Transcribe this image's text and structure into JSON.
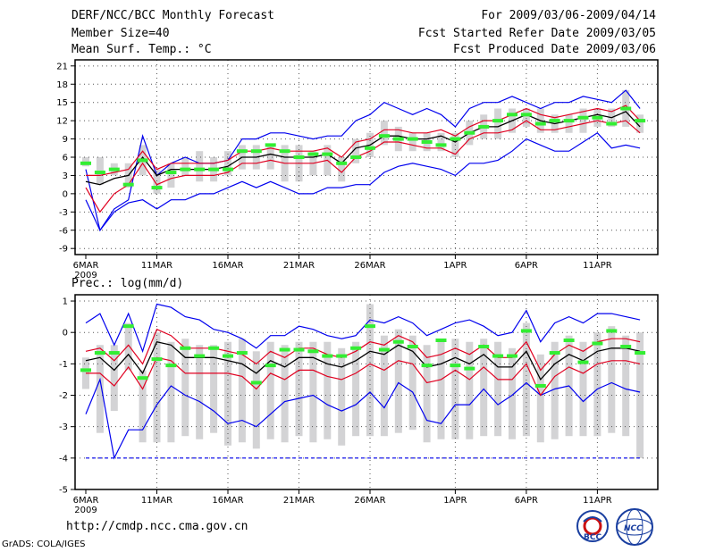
{
  "header": {
    "title": "DERF/NCC/BCC Monthly Forecast",
    "member_size": "Member Size=40",
    "variable": "Mean Surf. Temp.: °C",
    "period": "For 2009/03/06-2009/04/14",
    "started": "Fcst Started Refer Date 2009/03/05",
    "produced": "Fcst Produced Date 2009/03/06"
  },
  "precip_label": "Prec.: log(mm/d)",
  "footer": {
    "url": "http://cmdp.ncc.cma.gov.cn",
    "grads": "GrADS: COLA/IGES"
  },
  "logos": {
    "bcc": "BCC",
    "ncc": "NCC"
  },
  "colors": {
    "box": "#d3d3d5",
    "mean": "#000000",
    "sd": "#e00020",
    "range": "#0000ee",
    "obs": "#33ee33",
    "grid": "#555555"
  },
  "chart_data": [
    {
      "type": "line",
      "title": "Mean Surf. Temp.: °C",
      "x": [
        "6MAR",
        "7MAR",
        "8MAR",
        "9MAR",
        "10MAR",
        "11MAR",
        "12MAR",
        "13MAR",
        "14MAR",
        "15MAR",
        "16MAR",
        "17MAR",
        "18MAR",
        "19MAR",
        "20MAR",
        "21MAR",
        "22MAR",
        "23MAR",
        "24MAR",
        "25MAR",
        "26MAR",
        "27MAR",
        "28MAR",
        "29MAR",
        "30MAR",
        "31MAR",
        "1APR",
        "2APR",
        "3APR",
        "4APR",
        "5APR",
        "6APR",
        "7APR",
        "8APR",
        "9APR",
        "10APR",
        "11APR",
        "12APR",
        "13APR",
        "14APR"
      ],
      "x_ticks": [
        "6MAR",
        "11MAR",
        "16MAR",
        "21MAR",
        "26MAR",
        "1APR",
        "6APR",
        "11APR"
      ],
      "x_tick_index": [
        0,
        5,
        10,
        15,
        20,
        26,
        31,
        36
      ],
      "x_sublabel": "2009",
      "ylim": [
        -10,
        22
      ],
      "yticks": [
        -9,
        -6,
        -3,
        0,
        3,
        6,
        9,
        12,
        15,
        18,
        21
      ],
      "series": [
        {
          "name": "max",
          "values": [
            4,
            -6,
            -2.5,
            -1,
            9.5,
            3,
            5,
            6,
            5,
            5,
            5.5,
            9,
            9,
            10,
            10,
            9.5,
            9,
            9.5,
            9.5,
            12,
            13,
            15,
            14,
            13,
            14,
            13,
            11,
            14,
            15,
            15,
            16,
            15,
            14,
            15,
            15,
            16,
            15.5,
            15,
            17,
            14
          ]
        },
        {
          "name": "mean_plus_sd",
          "values": [
            3,
            3,
            3.5,
            4,
            7,
            4,
            5,
            5,
            5,
            5,
            5.5,
            7,
            7,
            7.5,
            7,
            7,
            7,
            7.5,
            6,
            8.5,
            9,
            10.5,
            10.5,
            10,
            10,
            10.5,
            9.5,
            11,
            12,
            12,
            13,
            14,
            13,
            12.5,
            13,
            13.5,
            14,
            13.5,
            14.5,
            12
          ]
        },
        {
          "name": "mean",
          "values": [
            2,
            1.5,
            2.5,
            3,
            6,
            3,
            4,
            4,
            4,
            4,
            4.5,
            6,
            6,
            6.5,
            6,
            6,
            6,
            6.5,
            5,
            7.5,
            8,
            9.5,
            9.5,
            9,
            9,
            9.5,
            8.5,
            10,
            11,
            11,
            12,
            13,
            12,
            11.5,
            12,
            12.5,
            13,
            12.5,
            13.5,
            11
          ]
        },
        {
          "name": "mean_minus_sd",
          "values": [
            1,
            -3,
            0,
            1.5,
            5,
            1.5,
            2.5,
            3,
            3,
            3,
            3.5,
            5,
            5,
            5.5,
            5,
            5,
            5,
            5.5,
            3.5,
            6,
            7,
            8.5,
            8.5,
            8,
            7.5,
            7.5,
            6.5,
            9,
            10,
            10,
            10.5,
            12,
            10.5,
            10.5,
            11,
            11.5,
            12,
            11.5,
            12,
            10
          ]
        },
        {
          "name": "min",
          "values": [
            -1,
            -6,
            -3,
            -1.5,
            -1,
            -2.5,
            -1,
            -1,
            0,
            0,
            1,
            2,
            1,
            2,
            1,
            0,
            0,
            1,
            1,
            1.5,
            1.5,
            3.5,
            4.5,
            5,
            4.5,
            4,
            3,
            5,
            5,
            5.5,
            7,
            9,
            8,
            7,
            7,
            8.5,
            10,
            7.5,
            8,
            7.5
          ]
        },
        {
          "name": "box_low",
          "values": [
            4.5,
            1.5,
            3,
            1,
            3,
            0,
            1,
            3,
            2,
            2,
            3,
            4,
            4,
            4,
            2,
            2,
            3,
            3,
            2,
            5,
            6,
            8,
            7,
            7,
            7,
            7,
            6,
            8,
            9,
            9,
            10,
            11,
            10,
            10,
            10,
            10,
            11,
            11,
            11,
            10
          ]
        },
        {
          "name": "box_high",
          "values": [
            6,
            6,
            5,
            5,
            8,
            4,
            5,
            6,
            7,
            6,
            7,
            8,
            8,
            8,
            8,
            8,
            7,
            8,
            6,
            9,
            10,
            12,
            11,
            10,
            10,
            10,
            10,
            12,
            13,
            14,
            14,
            14,
            14,
            13,
            13,
            14,
            14,
            14,
            17,
            13
          ]
        },
        {
          "name": "observed",
          "values": [
            5,
            3.5,
            4,
            1.5,
            5.5,
            1,
            3.5,
            4,
            4,
            4,
            4,
            7,
            7,
            8,
            7,
            6,
            6.5,
            6.5,
            5,
            6,
            7.5,
            9.5,
            9,
            9,
            8.5,
            8,
            9,
            10,
            11,
            12,
            13,
            13,
            11.5,
            12,
            12,
            12.5,
            12.5,
            11.5,
            14,
            12
          ]
        }
      ]
    },
    {
      "type": "line",
      "title": "Prec.: log(mm/d)",
      "x": [
        "6MAR",
        "7MAR",
        "8MAR",
        "9MAR",
        "10MAR",
        "11MAR",
        "12MAR",
        "13MAR",
        "14MAR",
        "15MAR",
        "16MAR",
        "17MAR",
        "18MAR",
        "19MAR",
        "20MAR",
        "21MAR",
        "22MAR",
        "23MAR",
        "24MAR",
        "25MAR",
        "26MAR",
        "27MAR",
        "28MAR",
        "29MAR",
        "30MAR",
        "31MAR",
        "1APR",
        "2APR",
        "3APR",
        "4APR",
        "5APR",
        "6APR",
        "7APR",
        "8APR",
        "9APR",
        "10APR",
        "11APR",
        "12APR",
        "13APR",
        "14APR"
      ],
      "x_ticks": [
        "6MAR",
        "11MAR",
        "16MAR",
        "21MAR",
        "26MAR",
        "1APR",
        "6APR",
        "11APR"
      ],
      "x_tick_index": [
        0,
        5,
        10,
        15,
        20,
        26,
        31,
        36
      ],
      "x_sublabel": "2009",
      "ylim": [
        -5,
        1.2
      ],
      "yticks": [
        -5,
        -4,
        -3,
        -2,
        -1,
        0,
        1
      ],
      "series": [
        {
          "name": "max",
          "values": [
            0.3,
            0.6,
            -0.4,
            0.6,
            -0.6,
            0.9,
            0.8,
            0.5,
            0.4,
            0.1,
            0,
            -0.2,
            -0.5,
            -0.1,
            -0.1,
            0.2,
            0.1,
            -0.1,
            -0.2,
            -0.1,
            0.4,
            0.3,
            0.5,
            0.3,
            -0.1,
            0.1,
            0.3,
            0.4,
            0.2,
            -0.1,
            0,
            0.7,
            -0.3,
            0.3,
            0.5,
            0.3,
            0.6,
            0.6,
            0.5,
            0.4
          ]
        },
        {
          "name": "mean_plus_sd",
          "values": [
            -0.6,
            -0.5,
            -0.9,
            -0.4,
            -1,
            0.1,
            -0.1,
            -0.5,
            -0.5,
            -0.5,
            -0.6,
            -0.7,
            -1,
            -0.6,
            -0.8,
            -0.5,
            -0.5,
            -0.7,
            -0.8,
            -0.6,
            -0.3,
            -0.4,
            -0.1,
            -0.3,
            -0.8,
            -0.7,
            -0.5,
            -0.7,
            -0.4,
            -0.8,
            -0.8,
            -0.3,
            -1.2,
            -0.7,
            -0.4,
            -0.6,
            -0.3,
            -0.2,
            -0.2,
            -0.3
          ]
        },
        {
          "name": "mean",
          "values": [
            -0.9,
            -0.8,
            -1.2,
            -0.7,
            -1.3,
            -0.3,
            -0.4,
            -0.8,
            -0.8,
            -0.8,
            -0.9,
            -1,
            -1.3,
            -0.9,
            -1.1,
            -0.8,
            -0.8,
            -1,
            -1.1,
            -0.9,
            -0.6,
            -0.7,
            -0.4,
            -0.6,
            -1.1,
            -1,
            -0.8,
            -1,
            -0.7,
            -1.1,
            -1.1,
            -0.6,
            -1.5,
            -1,
            -0.7,
            -0.9,
            -0.6,
            -0.5,
            -0.5,
            -0.6
          ]
        },
        {
          "name": "mean_minus_sd",
          "values": [
            -1.3,
            -1.3,
            -1.7,
            -1.1,
            -1.8,
            -0.8,
            -0.9,
            -1.3,
            -1.3,
            -1.3,
            -1.3,
            -1.4,
            -1.8,
            -1.3,
            -1.5,
            -1.2,
            -1.2,
            -1.4,
            -1.5,
            -1.3,
            -1,
            -1.2,
            -0.9,
            -1,
            -1.6,
            -1.5,
            -1.2,
            -1.5,
            -1.1,
            -1.5,
            -1.5,
            -1,
            -2,
            -1.4,
            -1.1,
            -1.3,
            -1,
            -0.9,
            -0.9,
            -1
          ]
        },
        {
          "name": "min",
          "values": [
            -2.6,
            -1.5,
            -4,
            -3.1,
            -3.1,
            -2.3,
            -1.7,
            -2,
            -2.2,
            -2.5,
            -2.9,
            -2.8,
            -3,
            -2.6,
            -2.2,
            -2.1,
            -2,
            -2.3,
            -2.5,
            -2.3,
            -1.9,
            -2.4,
            -1.6,
            -1.9,
            -2.8,
            -2.9,
            -2.3,
            -2.3,
            -1.8,
            -2.3,
            -2,
            -1.6,
            -2,
            -1.8,
            -1.7,
            -2.2,
            -1.8,
            -1.6,
            -1.8,
            -1.9
          ]
        },
        {
          "name": "floor",
          "values": [
            -4,
            -4,
            -4,
            -4,
            -4,
            -4,
            -4,
            -4,
            -4,
            -4,
            -4,
            -4,
            -4,
            -4,
            -4,
            -4,
            -4,
            -4,
            -4,
            -4,
            -4,
            -4,
            -4,
            -4,
            -4,
            -4,
            -4,
            -4,
            -4,
            -4,
            -4,
            -4,
            -4,
            -4,
            -4,
            -4,
            -4,
            -4,
            -4,
            -4
          ]
        },
        {
          "name": "box_low",
          "values": [
            -1.8,
            -3.2,
            -2.5,
            -1.2,
            -3.5,
            -3.5,
            -3.5,
            -3.3,
            -3.4,
            -3.2,
            -3.6,
            -3.5,
            -3.7,
            -3.4,
            -3.5,
            -3.3,
            -3.5,
            -3.4,
            -3.6,
            -3.3,
            -3.3,
            -3.3,
            -3.2,
            -3.1,
            -3.5,
            -3.4,
            -3.4,
            -3.4,
            -3.3,
            -3.3,
            -3.4,
            -3.3,
            -3.5,
            -3.4,
            -3.3,
            -3.3,
            -3.3,
            -3.2,
            -3.3,
            -4
          ]
        },
        {
          "name": "box_high",
          "values": [
            -0.8,
            -0.4,
            -0.4,
            0.3,
            -1.2,
            0,
            -0.3,
            -0.2,
            -0.4,
            -0.4,
            -0.3,
            -0.2,
            -0.6,
            -0.3,
            -0.4,
            -0.3,
            -0.3,
            -0.3,
            -0.5,
            -0.3,
            0.9,
            -0.1,
            0.1,
            -0.1,
            -0.4,
            -0.2,
            -0.2,
            -0.3,
            -0.2,
            -0.3,
            -0.5,
            0.3,
            -0.7,
            -0.3,
            -0.1,
            -0.3,
            0,
            0.2,
            -0.1,
            0
          ]
        },
        {
          "name": "observed",
          "values": [
            -1.2,
            -0.65,
            -0.65,
            0.2,
            -1.45,
            -0.85,
            -1.05,
            -0.5,
            -0.75,
            -0.5,
            -0.75,
            -0.65,
            -1.6,
            -1.05,
            -0.55,
            -0.55,
            -0.6,
            -0.75,
            -0.75,
            -0.5,
            0.2,
            -0.55,
            -0.3,
            -0.45,
            -1.05,
            -0.25,
            -1.05,
            -1.15,
            -0.45,
            -0.75,
            -0.75,
            0.05,
            -1.7,
            -0.65,
            -0.25,
            -0.95,
            -0.35,
            0.05,
            -0.45,
            -0.65
          ]
        }
      ]
    }
  ]
}
